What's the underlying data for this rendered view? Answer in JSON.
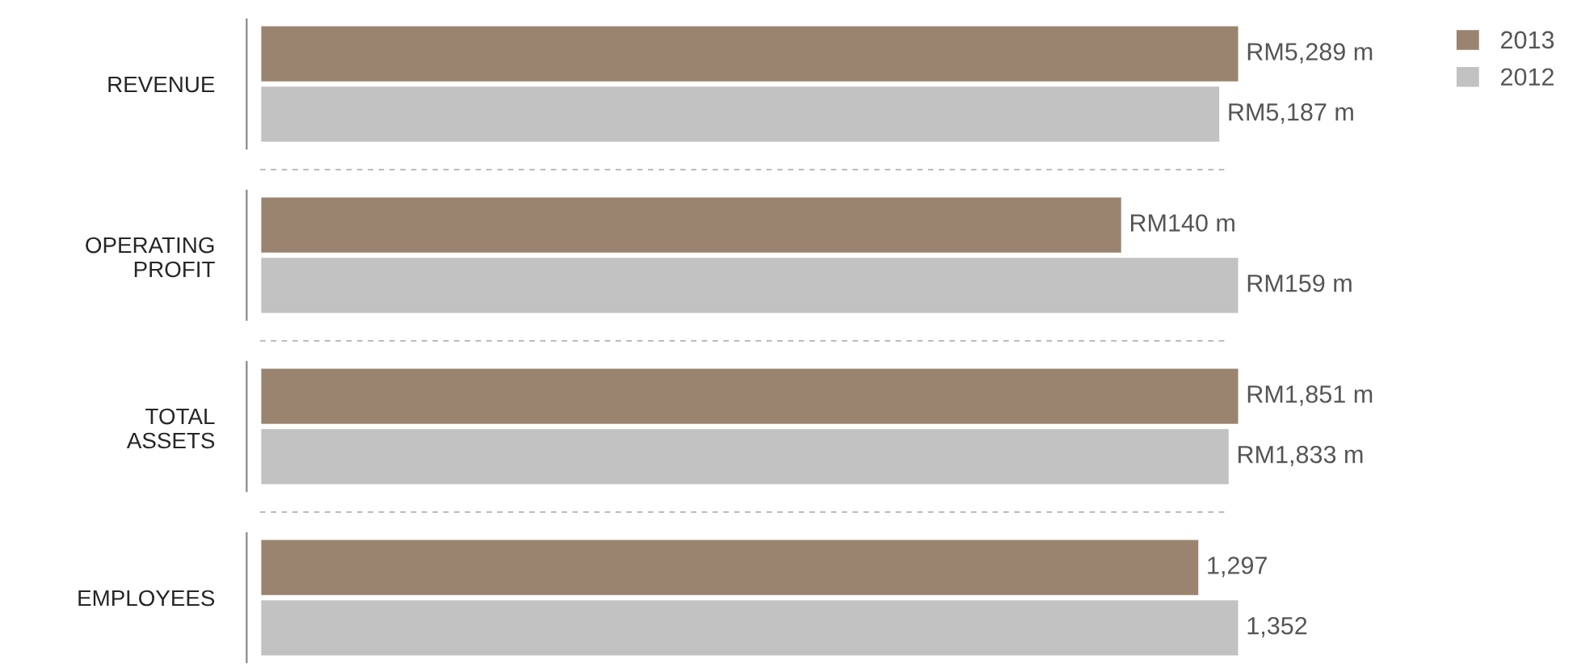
{
  "chart_data": [
    {
      "type": "bar",
      "orientation": "horizontal",
      "categories": [
        "REVENUE"
      ],
      "tick_labels": "y",
      "grid": false,
      "legend": "top right",
      "series": [
        {
          "name": "2013",
          "color": "#9a8470",
          "values": [
            5289
          ],
          "value_labels": [
            "RM5,289 m"
          ]
        },
        {
          "name": "2012",
          "color": "#c2c2c2",
          "values": [
            5187
          ],
          "value_labels": [
            "RM5,187 m"
          ]
        }
      ]
    },
    {
      "type": "bar",
      "orientation": "horizontal",
      "categories": [
        "OPERATING\nPROFIT"
      ],
      "tick_labels": "y",
      "grid": false,
      "legend": false,
      "series": [
        {
          "color": "#9a8470",
          "values": [
            140
          ],
          "value_labels": [
            "RM140 m"
          ]
        },
        {
          "color": "#c2c2c2",
          "values": [
            159
          ],
          "value_labels": [
            "RM159 m"
          ]
        }
      ]
    },
    {
      "type": "bar",
      "orientation": "horizontal",
      "categories": [
        "TOTAL\nASSETS"
      ],
      "tick_labels": "y",
      "grid": false,
      "legend": false,
      "series": [
        {
          "color": "#9a8470",
          "values": [
            1851
          ],
          "value_labels": [
            "RM1,851 m"
          ]
        },
        {
          "color": "#c2c2c2",
          "values": [
            1833
          ],
          "value_labels": [
            "RM1,833 m"
          ]
        }
      ]
    },
    {
      "type": "bar",
      "orientation": "horizontal",
      "categories": [
        "EMPLOYEES"
      ],
      "tick_labels": "y",
      "grid": false,
      "legend": false,
      "series": [
        {
          "color": "#9a8470",
          "values": [
            1297
          ],
          "value_labels": [
            "1,297"
          ]
        },
        {
          "color": "#c2c2c2",
          "values": [
            1352
          ],
          "value_labels": [
            "1,352"
          ]
        }
      ]
    }
  ]
}
